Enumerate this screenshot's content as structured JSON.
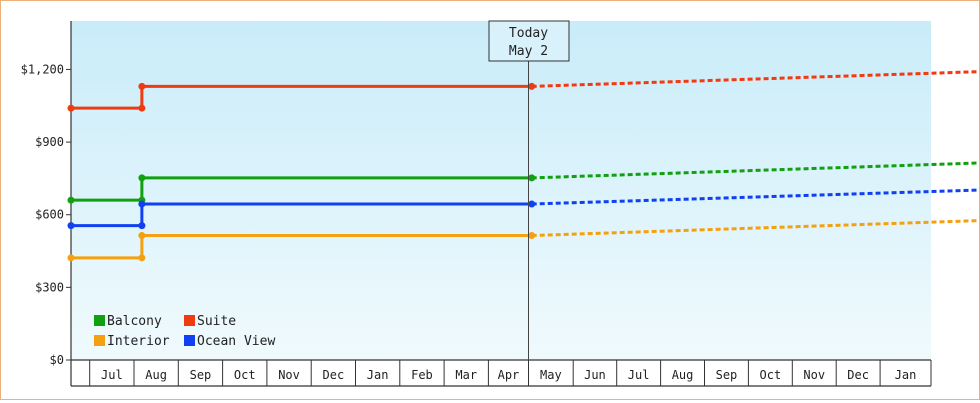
{
  "chart_data": {
    "type": "line",
    "line_style": "step",
    "y_tick_labels": [
      "$0",
      "$300",
      "$600",
      "$900",
      "$1,200"
    ],
    "ylim": [
      0,
      1400
    ],
    "x_tick_labels": [
      "Jul",
      "Aug",
      "Sep",
      "Oct",
      "Nov",
      "Dec",
      "Jan",
      "Feb",
      "Mar",
      "Apr",
      "May",
      "Jun",
      "Jul",
      "Aug",
      "Sep",
      "Oct",
      "Nov",
      "Dec",
      "Jan"
    ],
    "today_label": [
      "Today",
      "May 2"
    ],
    "legend_placement": "bottom-left",
    "series": [
      {
        "name": "Balcony",
        "color": "#10a010",
        "history": [
          {
            "month": 0,
            "value": 660
          },
          {
            "month": 1.6,
            "value": 660
          },
          {
            "month": 1.6,
            "value": 752
          },
          {
            "month": 10.4,
            "value": 752
          }
        ],
        "forecast": [
          {
            "month": 10.4,
            "value": 752
          },
          {
            "month": 20.7,
            "value": 815
          }
        ]
      },
      {
        "name": "Suite",
        "color": "#f03a10",
        "history": [
          {
            "month": 0,
            "value": 1040
          },
          {
            "month": 1.6,
            "value": 1040
          },
          {
            "month": 1.6,
            "value": 1130
          },
          {
            "month": 10.4,
            "value": 1130
          }
        ],
        "forecast": [
          {
            "month": 10.4,
            "value": 1130
          },
          {
            "month": 20.7,
            "value": 1192
          }
        ]
      },
      {
        "name": "Interior",
        "color": "#f5a010",
        "history": [
          {
            "month": 0,
            "value": 422
          },
          {
            "month": 1.6,
            "value": 422
          },
          {
            "month": 1.6,
            "value": 514
          },
          {
            "month": 10.4,
            "value": 514
          }
        ],
        "forecast": [
          {
            "month": 10.4,
            "value": 514
          },
          {
            "month": 20.7,
            "value": 577
          }
        ]
      },
      {
        "name": "Ocean View",
        "color": "#1040f0",
        "history": [
          {
            "month": 0,
            "value": 555
          },
          {
            "month": 1.6,
            "value": 555
          },
          {
            "month": 1.6,
            "value": 644
          },
          {
            "month": 10.4,
            "value": 644
          }
        ],
        "forecast": [
          {
            "month": 10.4,
            "value": 644
          },
          {
            "month": 20.7,
            "value": 703
          }
        ]
      }
    ]
  }
}
